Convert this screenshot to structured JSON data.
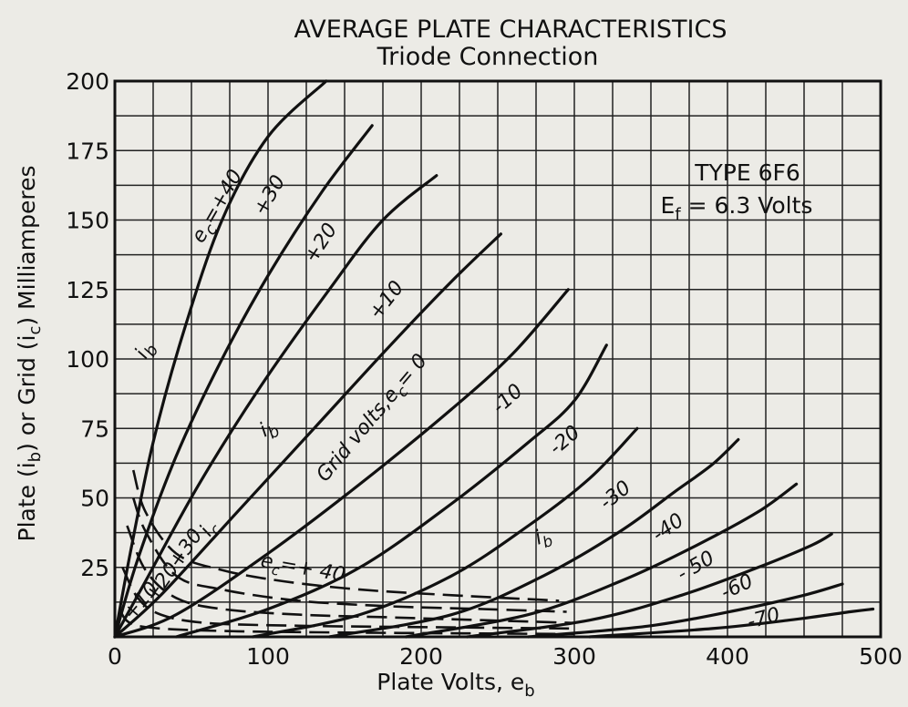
{
  "chart_data": {
    "type": "line",
    "title": "AVERAGE PLATE CHARACTERISTICS",
    "subtitle": "Triode Connection",
    "xlabel": "Plate Volts, e",
    "xlabel_sub": "b",
    "ylabel_parts": [
      "Plate (i",
      "b",
      ") or Grid (i",
      "c",
      ") Milliamperes"
    ],
    "xlim": [
      0,
      500
    ],
    "ylim": [
      0,
      200
    ],
    "xticks": [
      0,
      100,
      200,
      300,
      400,
      500
    ],
    "yticks": [
      25,
      50,
      75,
      100,
      125,
      150,
      175,
      200
    ],
    "x_origin_label": "0",
    "grid": true,
    "info_box": {
      "line1": "TYPE 6F6",
      "line2": "E",
      "line2_sub": "f",
      "line3": " = 6.3 Volts"
    },
    "plate_series": [
      {
        "name": "+40",
        "points": [
          [
            0,
            0
          ],
          [
            10,
            30
          ],
          [
            25,
            70
          ],
          [
            45,
            110
          ],
          [
            70,
            150
          ],
          [
            100,
            180
          ],
          [
            138,
            200
          ]
        ]
      },
      {
        "name": "+30",
        "points": [
          [
            0,
            0
          ],
          [
            15,
            28
          ],
          [
            40,
            65
          ],
          [
            70,
            100
          ],
          [
            100,
            130
          ],
          [
            135,
            160
          ],
          [
            168,
            184
          ]
        ]
      },
      {
        "name": "+20",
        "points": [
          [
            0,
            0
          ],
          [
            20,
            20
          ],
          [
            55,
            55
          ],
          [
            95,
            90
          ],
          [
            140,
            125
          ],
          [
            175,
            150
          ],
          [
            210,
            166
          ]
        ]
      },
      {
        "name": "+10",
        "points": [
          [
            0,
            0
          ],
          [
            30,
            15
          ],
          [
            80,
            45
          ],
          [
            130,
            75
          ],
          [
            180,
            105
          ],
          [
            220,
            128
          ],
          [
            252,
            145
          ]
        ]
      },
      {
        "name": "0",
        "points": [
          [
            0,
            0
          ],
          [
            40,
            8
          ],
          [
            100,
            30
          ],
          [
            160,
            55
          ],
          [
            220,
            82
          ],
          [
            260,
            102
          ],
          [
            296,
            125
          ]
        ]
      },
      {
        "name": "-10",
        "points": [
          [
            40,
            0
          ],
          [
            100,
            10
          ],
          [
            160,
            25
          ],
          [
            220,
            48
          ],
          [
            270,
            70
          ],
          [
            300,
            85
          ],
          [
            321,
            105
          ]
        ]
      },
      {
        "name": "-20",
        "points": [
          [
            90,
            0
          ],
          [
            160,
            8
          ],
          [
            220,
            22
          ],
          [
            270,
            40
          ],
          [
            310,
            57
          ],
          [
            341,
            75
          ]
        ]
      },
      {
        "name": "-30",
        "points": [
          [
            140,
            0
          ],
          [
            220,
            8
          ],
          [
            280,
            22
          ],
          [
            330,
            38
          ],
          [
            365,
            52
          ],
          [
            390,
            62
          ],
          [
            407,
            71
          ]
        ]
      },
      {
        "name": "-40",
        "points": [
          [
            190,
            0
          ],
          [
            270,
            8
          ],
          [
            330,
            20
          ],
          [
            380,
            33
          ],
          [
            420,
            45
          ],
          [
            445,
            55
          ]
        ]
      },
      {
        "name": "-50",
        "points": [
          [
            230,
            0
          ],
          [
            310,
            6
          ],
          [
            370,
            15
          ],
          [
            420,
            25
          ],
          [
            455,
            33
          ],
          [
            468,
            37
          ]
        ]
      },
      {
        "name": "-60",
        "points": [
          [
            270,
            0
          ],
          [
            350,
            4
          ],
          [
            410,
            10
          ],
          [
            450,
            15
          ],
          [
            475,
            19
          ]
        ]
      },
      {
        "name": "-70",
        "points": [
          [
            310,
            0
          ],
          [
            390,
            3
          ],
          [
            440,
            6
          ],
          [
            480,
            9
          ],
          [
            495,
            10
          ]
        ]
      }
    ],
    "grid_series": [
      {
        "name": "+40",
        "points": [
          [
            12,
            60
          ],
          [
            20,
            45
          ],
          [
            40,
            30
          ],
          [
            70,
            24
          ],
          [
            110,
            20
          ],
          [
            160,
            17
          ],
          [
            220,
            15
          ],
          [
            290,
            13
          ]
        ]
      },
      {
        "name": "+30",
        "points": [
          [
            12,
            50
          ],
          [
            20,
            38
          ],
          [
            40,
            22
          ],
          [
            70,
            17
          ],
          [
            120,
            13
          ],
          [
            180,
            11
          ],
          [
            240,
            10
          ],
          [
            295,
            9
          ]
        ]
      },
      {
        "name": "+20",
        "points": [
          [
            8,
            40
          ],
          [
            20,
            24
          ],
          [
            40,
            14
          ],
          [
            70,
            10
          ],
          [
            120,
            8
          ],
          [
            180,
            7
          ],
          [
            240,
            6
          ],
          [
            300,
            5
          ]
        ]
      },
      {
        "name": "+10",
        "points": [
          [
            5,
            25
          ],
          [
            15,
            14
          ],
          [
            30,
            8
          ],
          [
            60,
            5
          ],
          [
            120,
            4
          ],
          [
            200,
            3.5
          ],
          [
            300,
            3
          ]
        ]
      },
      {
        "name": "0",
        "points": [
          [
            3,
            10
          ],
          [
            10,
            5
          ],
          [
            30,
            3
          ],
          [
            80,
            2
          ],
          [
            160,
            1.5
          ],
          [
            240,
            1.2
          ],
          [
            300,
            1
          ]
        ]
      }
    ],
    "plate_labels": [
      {
        "text": "e",
        "sub": "c",
        "after": "=+40"
      },
      {
        "text": "+30"
      },
      {
        "text": "+20"
      },
      {
        "text": "+10"
      },
      {
        "text": "Grid volts,e",
        "sub": "c",
        "after": "= 0"
      },
      {
        "text": "-10"
      },
      {
        "text": "-20"
      },
      {
        "text": "-30"
      },
      {
        "text": "-40"
      },
      {
        "text": "- 50"
      },
      {
        "text": "-60"
      },
      {
        "text": "-70"
      }
    ],
    "grid_labels": [
      {
        "text": "e",
        "sub": "c",
        "after": "=+ 40"
      },
      {
        "text": "+30"
      },
      {
        "text": "+20"
      },
      {
        "text": "+10"
      }
    ],
    "ib_label": {
      "text": "i",
      "sub": "b"
    },
    "ic_label": {
      "text": "i",
      "sub": "c"
    }
  }
}
